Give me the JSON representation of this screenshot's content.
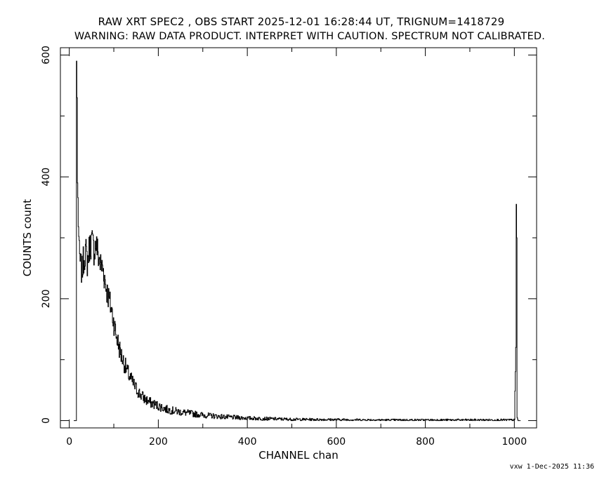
{
  "title_line1": "RAW XRT SPEC2 , OBS START 2025-12-01 16:28:44 UT, TRIGNUM=1418729",
  "title_line2": "WARNING: RAW DATA PRODUCT. INTERPRET WITH CAUTION. SPECTRUM NOT CALIBRATED.",
  "footer_stamp": "vxw  1-Dec-2025 11:36",
  "chart_data": {
    "type": "line",
    "step": true,
    "xlabel": "CHANNEL  chan",
    "ylabel": "COUNTS  count",
    "xlim": [
      -20,
      1050
    ],
    "ylim": [
      -12,
      612
    ],
    "xticks": [
      0,
      200,
      400,
      600,
      800,
      1000
    ],
    "yticks": [
      0,
      200,
      400,
      600
    ],
    "xtick_labels": [
      "0",
      "200",
      "400",
      "600",
      "800",
      "1000"
    ],
    "ytick_labels": [
      "0",
      "200",
      "400",
      "600"
    ],
    "grid": false,
    "color": "#000000",
    "series": [
      {
        "x": [
          10,
          15,
          16,
          17,
          18,
          20,
          22,
          25,
          28,
          32,
          36,
          40,
          45,
          50,
          55,
          60,
          65,
          70,
          75,
          80,
          85,
          90,
          95,
          100,
          105,
          110,
          115,
          120,
          125,
          130,
          140,
          150,
          160,
          170,
          180,
          200,
          220,
          250,
          280,
          300,
          350,
          400,
          450,
          500,
          600,
          700,
          800,
          900,
          1000,
          1003,
          1004,
          1005,
          1006,
          1008
        ],
        "y": [
          0,
          0,
          590,
          530,
          390,
          330,
          270,
          255,
          245,
          265,
          280,
          260,
          285,
          295,
          280,
          290,
          270,
          255,
          250,
          230,
          210,
          195,
          180,
          160,
          140,
          125,
          110,
          100,
          90,
          80,
          65,
          52,
          42,
          35,
          30,
          24,
          18,
          14,
          11,
          9,
          6,
          4,
          3,
          2,
          1.5,
          1,
          1,
          1,
          1,
          120,
          355,
          300,
          5,
          0
        ]
      }
    ]
  }
}
